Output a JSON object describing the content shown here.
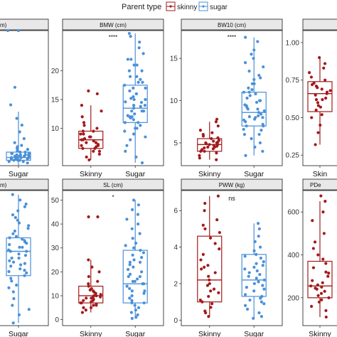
{
  "legend": {
    "title": "Parent type",
    "items": [
      {
        "label": "skinny",
        "color": "#a31a1a"
      },
      {
        "label": "sugar",
        "color": "#4a90d9"
      }
    ]
  },
  "colors": {
    "skinny": "#a31a1a",
    "sugar": "#4a90d9",
    "strip_bg": "#e8e8e8",
    "panel_border": "#333333"
  },
  "chart_data": [
    {
      "type": "box",
      "title": "m)",
      "categories": [
        "Sugar"
      ],
      "yticks": [],
      "ylim": [
        0,
        100
      ],
      "annotation": "",
      "series": [
        {
          "name": "Sugar",
          "box": {
            "min": 0,
            "q1": 4,
            "median": 6,
            "q3": 10,
            "max": 40
          },
          "points": [
            2,
            3,
            4,
            5,
            5,
            6,
            6,
            7,
            7,
            8,
            8,
            9,
            9,
            10,
            11,
            12,
            13,
            15,
            17,
            20,
            25,
            30,
            35,
            45,
            58,
            100,
            100,
            5,
            6,
            7,
            3,
            4,
            8,
            9,
            10,
            6,
            5,
            4,
            7,
            8,
            12,
            14
          ]
        }
      ]
    },
    {
      "type": "box",
      "title": "BMW (cm)",
      "categories": [
        "Skinny",
        "Sugar"
      ],
      "yticks": [
        10,
        15,
        20
      ],
      "ylim": [
        3.5,
        27
      ],
      "annotation": "****",
      "series": [
        {
          "name": "Skinny",
          "box": {
            "min": 4.5,
            "q1": 6.5,
            "median": 8,
            "q3": 9.5,
            "max": 14
          },
          "points": [
            4.5,
            5,
            5.5,
            6,
            6,
            6.5,
            6.5,
            7,
            7,
            7.5,
            7.5,
            7.8,
            8,
            8,
            8.2,
            8.5,
            8.5,
            9,
            9,
            9.5,
            9.5,
            10,
            10.5,
            11,
            12,
            13,
            14,
            16,
            16.5,
            6.8,
            7.2
          ]
        }
      ],
      "series_sugar": {
        "name": "Sugar",
        "box": {
          "min": 4,
          "q1": 11,
          "median": 13.5,
          "q3": 17.5,
          "max": 26.5
        },
        "points": [
          4,
          5,
          6,
          7,
          8,
          8.5,
          9,
          9.5,
          10,
          10,
          10.5,
          11,
          11,
          11.5,
          12,
          12,
          12.5,
          13,
          13,
          13,
          13.5,
          14,
          14,
          14.5,
          15,
          15,
          15.5,
          16,
          16,
          16.5,
          17,
          17,
          17.5,
          18,
          18,
          18.5,
          19,
          19,
          20,
          20,
          21,
          21,
          22,
          22,
          23,
          24,
          25,
          26,
          26.5,
          12.2,
          13.8,
          14.6,
          15.2,
          11.8
        ]
      }
    },
    {
      "type": "box",
      "title": "BW10 (cm)",
      "categories": [
        "Skinny",
        "Sugar"
      ],
      "yticks": [
        5,
        10,
        15
      ],
      "ylim": [
        2.3,
        18.3
      ],
      "annotation": "****",
      "series": [
        {
          "name": "Skinny",
          "box": {
            "min": 3,
            "q1": 4,
            "median": 4.8,
            "q3": 5.5,
            "max": 7.5
          },
          "points": [
            3,
            3.2,
            3.5,
            3.8,
            4,
            4,
            4.2,
            4.3,
            4.5,
            4.5,
            4.6,
            4.7,
            4.8,
            4.8,
            5,
            5,
            5.1,
            5.2,
            5.3,
            5.5,
            5.6,
            5.8,
            6,
            6.2,
            6.5,
            7,
            7.5,
            7.8,
            4.4,
            4.9
          ]
        }
      ],
      "series_sugar": {
        "name": "Sugar",
        "box": {
          "min": 3.5,
          "q1": 7,
          "median": 8.6,
          "q3": 11,
          "max": 17.5
        },
        "points": [
          3.5,
          4,
          4.5,
          5,
          5.5,
          6,
          6,
          6.5,
          7,
          7,
          7.2,
          7.5,
          7.8,
          8,
          8,
          8.2,
          8.4,
          8.6,
          8.8,
          9,
          9,
          9.2,
          9.5,
          9.8,
          10,
          10,
          10.3,
          10.6,
          11,
          11,
          11.5,
          12,
          12,
          12.5,
          13,
          13.5,
          14,
          14.5,
          15,
          15.5,
          16,
          17,
          17.5,
          8.1,
          9.4,
          7.7,
          6.6,
          10.8,
          11.3,
          12.7
        ]
      }
    },
    {
      "type": "box",
      "title": "",
      "categories": [
        "Skin"
      ],
      "yticks": [
        0.25,
        0.5,
        0.75,
        1.0
      ],
      "ylim": [
        0.18,
        1.08
      ],
      "annotation": "",
      "series": [
        {
          "name": "Skinny",
          "box": {
            "min": 0.32,
            "q1": 0.54,
            "median": 0.66,
            "q3": 0.74,
            "max": 0.9
          },
          "points": [
            0.32,
            0.4,
            0.45,
            0.5,
            0.52,
            0.55,
            0.57,
            0.6,
            0.62,
            0.63,
            0.65,
            0.66,
            0.67,
            0.68,
            0.7,
            0.71,
            0.72,
            0.73,
            0.75,
            0.77,
            0.8,
            0.83,
            0.86,
            0.9,
            0.62,
            0.58,
            0.69
          ]
        }
      ]
    },
    {
      "type": "box",
      "title": "m)",
      "categories": [
        "Sugar"
      ],
      "yticks": [],
      "ylim": [
        0,
        100
      ],
      "annotation": "",
      "series": [
        {
          "name": "Sugar",
          "box": {
            "min": 2,
            "q1": 37,
            "median": 55,
            "q3": 65,
            "max": 97
          },
          "points": [
            2,
            8,
            12,
            15,
            20,
            25,
            28,
            30,
            33,
            35,
            37,
            40,
            42,
            44,
            45,
            47,
            48,
            50,
            52,
            53,
            55,
            55,
            56,
            58,
            60,
            61,
            62,
            63,
            64,
            65,
            66,
            68,
            70,
            72,
            74,
            76,
            78,
            80,
            82,
            85,
            88,
            90,
            93,
            97,
            50,
            58,
            46,
            41,
            39
          ]
        }
      ]
    },
    {
      "type": "box",
      "title": "SL (cm)",
      "categories": [
        "Skinny",
        "Sugar"
      ],
      "yticks": [
        0,
        10,
        20,
        30,
        40,
        50
      ],
      "ylim": [
        -2.5,
        54
      ],
      "annotation": "*",
      "series": [
        {
          "name": "Skinny",
          "box": {
            "min": 3,
            "q1": 7,
            "median": 10,
            "q3": 14,
            "max": 25
          },
          "points": [
            3,
            4,
            5,
            5,
            6,
            6,
            7,
            7,
            7.5,
            8,
            8,
            8.5,
            9,
            9,
            9.5,
            10,
            10,
            10.5,
            11,
            11.5,
            12,
            13,
            14,
            15,
            16,
            18,
            20,
            22,
            25,
            43,
            43,
            6.5,
            9.2,
            12.4
          ]
        }
      ],
      "series_sugar": {
        "name": "Sugar",
        "box": {
          "min": 0.5,
          "q1": 7,
          "median": 15,
          "q3": 29,
          "max": 50
        },
        "points": [
          0.5,
          1,
          2,
          3,
          4,
          5,
          6,
          7,
          7,
          8,
          9,
          10,
          11,
          12,
          13,
          14,
          15,
          15,
          16,
          17,
          18,
          19,
          20,
          21,
          22,
          23,
          24,
          25,
          26,
          27,
          28,
          29,
          30,
          32,
          34,
          36,
          38,
          40,
          42,
          44,
          46,
          48,
          50,
          9,
          14,
          18,
          24,
          31,
          12,
          16
        ]
      }
    },
    {
      "type": "box",
      "title": "PWW (kg)",
      "categories": [
        "Skinny",
        "Sugar"
      ],
      "yticks": [
        0,
        2,
        4,
        6
      ],
      "ylim": [
        -0.3,
        7.1
      ],
      "annotation": "ns",
      "series": [
        {
          "name": "Skinny",
          "box": {
            "min": 0.2,
            "q1": 1.0,
            "median": 2.2,
            "q3": 4.6,
            "max": 6.8
          },
          "points": [
            0.2,
            0.4,
            0.5,
            0.7,
            0.9,
            1,
            1.1,
            1.3,
            1.5,
            1.7,
            1.9,
            2,
            2.2,
            2.4,
            2.6,
            2.8,
            3,
            3.3,
            3.6,
            3.9,
            4.2,
            4.5,
            4.8,
            5,
            5.2,
            5.5,
            6,
            6.4,
            6.8,
            1.6,
            2.9
          ]
        }
      ],
      "series_sugar": {
        "name": "Sugar",
        "box": {
          "min": 0.1,
          "q1": 1.3,
          "median": 2.2,
          "q3": 3.6,
          "max": 5.3
        },
        "points": [
          0.1,
          0.2,
          0.4,
          0.6,
          0.8,
          1,
          1.1,
          1.3,
          1.4,
          1.6,
          1.8,
          1.9,
          2,
          2.1,
          2.2,
          2.3,
          2.4,
          2.5,
          2.7,
          2.9,
          3,
          3.2,
          3.4,
          3.6,
          3.8,
          4,
          4.3,
          4.6,
          5,
          5.3,
          1.7,
          2.6,
          3.1,
          0.9,
          2.8,
          3.5,
          1.2
        ]
      }
    },
    {
      "type": "box",
      "title": "PDe",
      "categories": [
        "Skinny"
      ],
      "yticks": [
        200,
        400,
        600
      ],
      "ylim": [
        70,
        700
      ],
      "annotation": "",
      "series": [
        {
          "name": "Skinny",
          "box": {
            "min": 110,
            "q1": 200,
            "median": 255,
            "q3": 370,
            "max": 650
          },
          "points": [
            110,
            140,
            160,
            180,
            190,
            200,
            210,
            220,
            230,
            240,
            250,
            255,
            260,
            270,
            280,
            300,
            320,
            340,
            360,
            380,
            400,
            430,
            460,
            500,
            560,
            600,
            650,
            675,
            245,
            315
          ]
        }
      ]
    }
  ]
}
